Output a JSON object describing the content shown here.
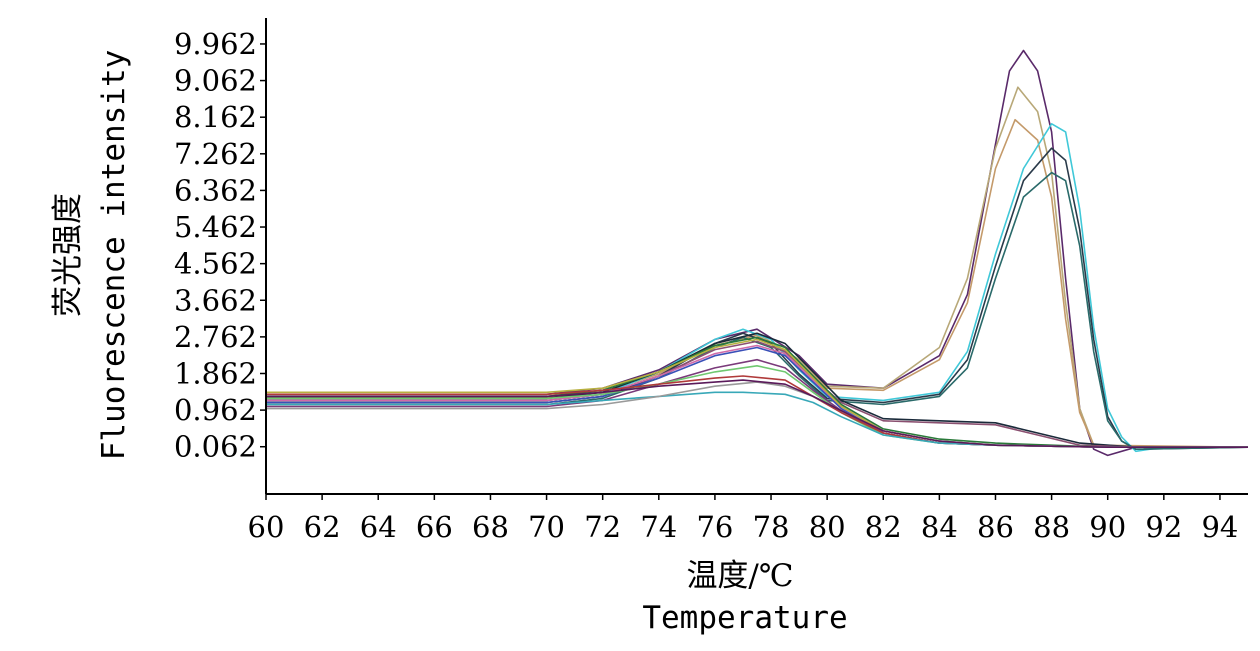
{
  "chart_data": {
    "type": "line",
    "xlabel": "温度/℃",
    "xlabel_en": "Temperature",
    "ylabel": "荧光强度",
    "ylabel_en": "Fluorescence intensity",
    "xlim": [
      60,
      95
    ],
    "ylim": [
      -1.1,
      10.6
    ],
    "x_ticks": [
      "60",
      "62",
      "64",
      "66",
      "68",
      "70",
      "72",
      "74",
      "76",
      "78",
      "80",
      "82",
      "84",
      "86",
      "88",
      "90",
      "92",
      "94"
    ],
    "y_ticks": [
      "0.062",
      "0.962",
      "1.862",
      "2.762",
      "3.662",
      "4.562",
      "5.462",
      "6.362",
      "7.262",
      "8.162",
      "9.062",
      "9.962"
    ],
    "series": [
      {
        "color": "#5a2a6a",
        "values": [
          [
            60,
            1.35
          ],
          [
            70,
            1.35
          ],
          [
            72,
            1.5
          ],
          [
            74,
            1.95
          ],
          [
            76,
            2.7
          ],
          [
            77.5,
            2.95
          ],
          [
            79,
            2.3
          ],
          [
            80,
            1.6
          ],
          [
            82,
            1.5
          ],
          [
            84,
            2.3
          ],
          [
            85,
            3.8
          ],
          [
            86,
            7.5
          ],
          [
            86.5,
            9.3
          ],
          [
            87,
            9.8
          ],
          [
            87.5,
            9.3
          ],
          [
            88,
            7.8
          ],
          [
            88.5,
            4.2
          ],
          [
            89,
            1.0
          ],
          [
            89.5,
            0.0
          ],
          [
            90,
            -0.15
          ],
          [
            91,
            0.05
          ],
          [
            95,
            0.05
          ]
        ]
      },
      {
        "color": "#b8a878",
        "values": [
          [
            60,
            1.3
          ],
          [
            70,
            1.3
          ],
          [
            72,
            1.45
          ],
          [
            74,
            1.9
          ],
          [
            76,
            2.6
          ],
          [
            77.5,
            2.85
          ],
          [
            79,
            2.2
          ],
          [
            80,
            1.55
          ],
          [
            82,
            1.5
          ],
          [
            84,
            2.5
          ],
          [
            85,
            4.2
          ],
          [
            86,
            7.4
          ],
          [
            86.8,
            8.9
          ],
          [
            87.5,
            8.3
          ],
          [
            88,
            6.8
          ],
          [
            88.5,
            3.6
          ],
          [
            89,
            1.0
          ],
          [
            89.5,
            0.1
          ],
          [
            91,
            0.05
          ],
          [
            95,
            0.05
          ]
        ]
      },
      {
        "color": "#c49a6a",
        "values": [
          [
            60,
            1.28
          ],
          [
            70,
            1.28
          ],
          [
            72,
            1.4
          ],
          [
            74,
            1.85
          ],
          [
            76,
            2.55
          ],
          [
            77.5,
            2.8
          ],
          [
            79,
            2.15
          ],
          [
            80,
            1.5
          ],
          [
            82,
            1.45
          ],
          [
            84,
            2.2
          ],
          [
            85,
            3.6
          ],
          [
            86,
            6.9
          ],
          [
            86.7,
            8.1
          ],
          [
            87.5,
            7.6
          ],
          [
            88,
            6.2
          ],
          [
            88.5,
            3.2
          ],
          [
            89,
            0.9
          ],
          [
            89.5,
            0.1
          ],
          [
            95,
            0.05
          ]
        ]
      },
      {
        "color": "#40c8d8",
        "values": [
          [
            60,
            1.2
          ],
          [
            70,
            1.2
          ],
          [
            72,
            1.35
          ],
          [
            74,
            1.9
          ],
          [
            76,
            2.7
          ],
          [
            77,
            2.95
          ],
          [
            78,
            2.7
          ],
          [
            79,
            1.95
          ],
          [
            80,
            1.3
          ],
          [
            82,
            1.2
          ],
          [
            84,
            1.4
          ],
          [
            85,
            2.4
          ],
          [
            86,
            4.8
          ],
          [
            87,
            6.9
          ],
          [
            88,
            8.0
          ],
          [
            88.5,
            7.8
          ],
          [
            89,
            5.9
          ],
          [
            89.5,
            3.0
          ],
          [
            90,
            1.0
          ],
          [
            90.5,
            0.3
          ],
          [
            91,
            -0.05
          ],
          [
            92,
            0.05
          ],
          [
            95,
            0.05
          ]
        ]
      },
      {
        "color": "#2a3a4a",
        "values": [
          [
            60,
            1.15
          ],
          [
            70,
            1.15
          ],
          [
            72,
            1.3
          ],
          [
            74,
            1.8
          ],
          [
            76,
            2.6
          ],
          [
            77,
            2.85
          ],
          [
            78,
            2.6
          ],
          [
            79,
            1.85
          ],
          [
            80,
            1.25
          ],
          [
            82,
            1.15
          ],
          [
            84,
            1.35
          ],
          [
            85,
            2.2
          ],
          [
            86,
            4.5
          ],
          [
            87,
            6.6
          ],
          [
            88,
            7.4
          ],
          [
            88.5,
            7.1
          ],
          [
            89,
            5.4
          ],
          [
            89.5,
            2.7
          ],
          [
            90,
            0.8
          ],
          [
            90.5,
            0.2
          ],
          [
            91,
            0.0
          ],
          [
            95,
            0.05
          ]
        ]
      },
      {
        "color": "#2a6a6a",
        "values": [
          [
            60,
            1.1
          ],
          [
            70,
            1.1
          ],
          [
            72,
            1.25
          ],
          [
            74,
            1.75
          ],
          [
            76,
            2.5
          ],
          [
            77,
            2.75
          ],
          [
            78,
            2.5
          ],
          [
            79,
            1.8
          ],
          [
            80,
            1.2
          ],
          [
            82,
            1.1
          ],
          [
            84,
            1.3
          ],
          [
            85,
            2.0
          ],
          [
            86,
            4.2
          ],
          [
            87,
            6.2
          ],
          [
            88,
            6.8
          ],
          [
            88.5,
            6.6
          ],
          [
            89,
            5.0
          ],
          [
            89.5,
            2.4
          ],
          [
            90,
            0.7
          ],
          [
            90.5,
            0.2
          ],
          [
            91,
            0.0
          ],
          [
            95,
            0.05
          ]
        ]
      },
      {
        "color": "#1a2a3a",
        "values": [
          [
            60,
            1.25
          ],
          [
            70,
            1.25
          ],
          [
            72,
            1.4
          ],
          [
            74,
            1.9
          ],
          [
            76,
            2.6
          ],
          [
            77.5,
            2.85
          ],
          [
            78.5,
            2.6
          ],
          [
            79.5,
            1.9
          ],
          [
            80.5,
            1.2
          ],
          [
            82,
            0.75
          ],
          [
            84,
            0.7
          ],
          [
            86,
            0.65
          ],
          [
            87.5,
            0.4
          ],
          [
            89,
            0.15
          ],
          [
            91,
            0.05
          ],
          [
            95,
            0.05
          ]
        ]
      },
      {
        "color": "#8a5070",
        "values": [
          [
            60,
            1.2
          ],
          [
            70,
            1.2
          ],
          [
            72,
            1.35
          ],
          [
            74,
            1.8
          ],
          [
            76,
            2.45
          ],
          [
            77.5,
            2.65
          ],
          [
            78.5,
            2.4
          ],
          [
            79.5,
            1.75
          ],
          [
            80.5,
            1.15
          ],
          [
            82,
            0.7
          ],
          [
            84,
            0.65
          ],
          [
            86,
            0.6
          ],
          [
            87.5,
            0.35
          ],
          [
            89,
            0.1
          ],
          [
            91,
            0.05
          ],
          [
            95,
            0.05
          ]
        ]
      },
      {
        "color": "#2a7a3a",
        "values": [
          [
            60,
            1.3
          ],
          [
            70,
            1.3
          ],
          [
            72,
            1.45
          ],
          [
            74,
            1.9
          ],
          [
            76,
            2.55
          ],
          [
            77.5,
            2.75
          ],
          [
            78.5,
            2.5
          ],
          [
            79.5,
            1.8
          ],
          [
            80.5,
            1.1
          ],
          [
            82,
            0.5
          ],
          [
            84,
            0.25
          ],
          [
            86,
            0.15
          ],
          [
            88,
            0.1
          ],
          [
            90,
            0.05
          ],
          [
            95,
            0.05
          ]
        ]
      },
      {
        "color": "#d06aa8",
        "values": [
          [
            60,
            1.2
          ],
          [
            70,
            1.2
          ],
          [
            72,
            1.35
          ],
          [
            74,
            1.8
          ],
          [
            76,
            2.35
          ],
          [
            77.5,
            2.55
          ],
          [
            78.5,
            2.35
          ],
          [
            79.5,
            1.7
          ],
          [
            80.5,
            1.05
          ],
          [
            82,
            0.45
          ],
          [
            84,
            0.2
          ],
          [
            86,
            0.1
          ],
          [
            90,
            0.05
          ],
          [
            95,
            0.05
          ]
        ]
      },
      {
        "color": "#b8b040",
        "values": [
          [
            60,
            1.4
          ],
          [
            70,
            1.4
          ],
          [
            72,
            1.5
          ],
          [
            74,
            1.9
          ],
          [
            76,
            2.5
          ],
          [
            77.5,
            2.7
          ],
          [
            78.5,
            2.45
          ],
          [
            79.5,
            1.75
          ],
          [
            80.5,
            1.05
          ],
          [
            82,
            0.45
          ],
          [
            84,
            0.2
          ],
          [
            86,
            0.1
          ],
          [
            90,
            0.05
          ],
          [
            95,
            0.05
          ]
        ]
      },
      {
        "color": "#3a50b8",
        "values": [
          [
            60,
            1.15
          ],
          [
            70,
            1.15
          ],
          [
            72,
            1.3
          ],
          [
            74,
            1.75
          ],
          [
            76,
            2.3
          ],
          [
            77.5,
            2.5
          ],
          [
            78.5,
            2.3
          ],
          [
            79.5,
            1.65
          ],
          [
            80.5,
            1.0
          ],
          [
            82,
            0.4
          ],
          [
            84,
            0.15
          ],
          [
            86,
            0.1
          ],
          [
            90,
            0.05
          ],
          [
            95,
            0.05
          ]
        ]
      },
      {
        "color": "#7a3a7a",
        "values": [
          [
            60,
            1.05
          ],
          [
            70,
            1.05
          ],
          [
            72,
            1.2
          ],
          [
            74,
            1.6
          ],
          [
            76,
            2.0
          ],
          [
            77.5,
            2.2
          ],
          [
            78.5,
            2.0
          ],
          [
            79.5,
            1.45
          ],
          [
            80.5,
            0.95
          ],
          [
            82,
            0.4
          ],
          [
            84,
            0.15
          ],
          [
            86,
            0.1
          ],
          [
            90,
            0.05
          ],
          [
            95,
            0.05
          ]
        ]
      },
      {
        "color": "#70c870",
        "values": [
          [
            60,
            1.25
          ],
          [
            70,
            1.25
          ],
          [
            72,
            1.35
          ],
          [
            74,
            1.6
          ],
          [
            76,
            1.9
          ],
          [
            77.5,
            2.05
          ],
          [
            78.5,
            1.9
          ],
          [
            79.5,
            1.4
          ],
          [
            80.5,
            0.9
          ],
          [
            82,
            0.35
          ],
          [
            84,
            0.15
          ],
          [
            86,
            0.1
          ],
          [
            90,
            0.05
          ],
          [
            95,
            0.05
          ]
        ]
      },
      {
        "color": "#b03a3a",
        "values": [
          [
            60,
            1.35
          ],
          [
            70,
            1.35
          ],
          [
            72,
            1.45
          ],
          [
            74,
            1.6
          ],
          [
            76,
            1.75
          ],
          [
            77,
            1.8
          ],
          [
            78.5,
            1.7
          ],
          [
            79.5,
            1.3
          ],
          [
            80.5,
            0.9
          ],
          [
            82,
            0.4
          ],
          [
            84,
            0.15
          ],
          [
            86,
            0.1
          ],
          [
            90,
            0.05
          ],
          [
            95,
            0.05
          ]
        ]
      },
      {
        "color": "#38a8b8",
        "values": [
          [
            60,
            1.1
          ],
          [
            70,
            1.1
          ],
          [
            72,
            1.2
          ],
          [
            74,
            1.3
          ],
          [
            76,
            1.4
          ],
          [
            77,
            1.4
          ],
          [
            78.5,
            1.35
          ],
          [
            79.5,
            1.15
          ],
          [
            80.5,
            0.8
          ],
          [
            82,
            0.35
          ],
          [
            84,
            0.15
          ],
          [
            86,
            0.1
          ],
          [
            90,
            0.05
          ],
          [
            95,
            0.05
          ]
        ]
      },
      {
        "color": "#9a9a9a",
        "values": [
          [
            60,
            1.0
          ],
          [
            70,
            1.0
          ],
          [
            72,
            1.1
          ],
          [
            74,
            1.3
          ],
          [
            76,
            1.55
          ],
          [
            77.5,
            1.65
          ],
          [
            78.5,
            1.55
          ],
          [
            79.5,
            1.3
          ],
          [
            80.5,
            0.95
          ],
          [
            82,
            0.45
          ],
          [
            84,
            0.2
          ],
          [
            86,
            0.1
          ],
          [
            90,
            0.05
          ],
          [
            95,
            0.05
          ]
        ]
      },
      {
        "color": "#5a1a5a",
        "values": [
          [
            60,
            1.3
          ],
          [
            70,
            1.3
          ],
          [
            72,
            1.4
          ],
          [
            74,
            1.55
          ],
          [
            76,
            1.65
          ],
          [
            77,
            1.7
          ],
          [
            78.5,
            1.6
          ],
          [
            79.5,
            1.3
          ],
          [
            80.5,
            0.95
          ],
          [
            82,
            0.45
          ],
          [
            84,
            0.2
          ],
          [
            86,
            0.1
          ],
          [
            90,
            0.05
          ],
          [
            95,
            0.05
          ]
        ]
      }
    ]
  }
}
